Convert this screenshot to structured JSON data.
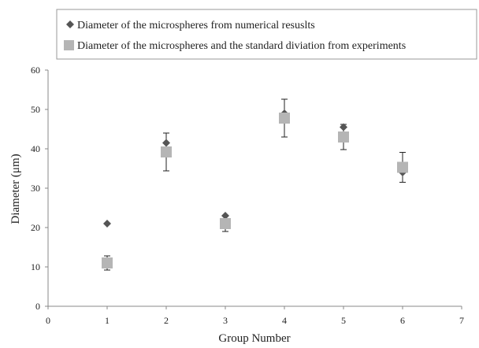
{
  "chart_data": {
    "type": "scatter",
    "xlabel": "Group Number",
    "ylabel": "Diameter (μm)",
    "xlim": [
      0,
      7
    ],
    "ylim": [
      0,
      60
    ],
    "xticks": [
      0,
      1,
      2,
      3,
      4,
      5,
      6,
      7
    ],
    "yticks": [
      0,
      10,
      20,
      30,
      40,
      50,
      60
    ],
    "grid": false,
    "legend_position": "top",
    "series": [
      {
        "name": "Diameter of the microspheres from numerical resuslts",
        "marker": "diamond",
        "color": "#555555",
        "x": [
          1,
          2,
          3,
          4,
          5,
          6
        ],
        "y": [
          21,
          41.5,
          23,
          49,
          45.5,
          34
        ]
      },
      {
        "name": "Diameter of the microspheres and the standard diviation from experiments",
        "marker": "square",
        "color": "#b5b5b5",
        "x": [
          1,
          2,
          3,
          4,
          5,
          6
        ],
        "y": [
          11,
          39.2,
          21,
          47.8,
          43,
          35.3
        ],
        "error": [
          1.8,
          4.8,
          2,
          4.8,
          3.2,
          3.8
        ]
      }
    ]
  }
}
